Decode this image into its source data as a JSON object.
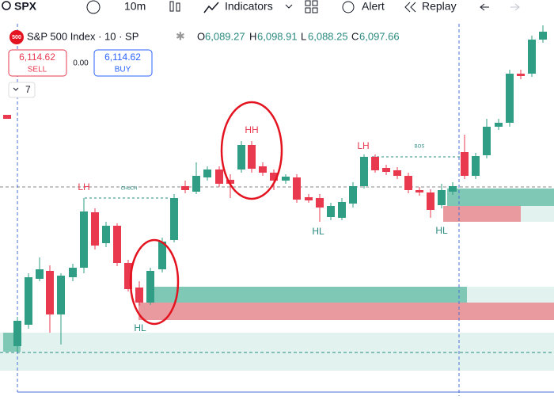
{
  "toolbar": {
    "symbol": "SPX",
    "interval": "10m",
    "indicators": "Indicators",
    "alert": "Alert",
    "replay": "Replay"
  },
  "legend": {
    "badge": "500",
    "title": "S&P 500 Index · 10 · SP",
    "o_label": "O",
    "open": "6,089.27",
    "h_label": "H",
    "high": "6,098.91",
    "l_label": "L",
    "low": "6,088.25",
    "c_label": "C",
    "close": "6,097.66"
  },
  "trade": {
    "sell_price": "6,114.62",
    "sell_label": "SELL",
    "spread": "0.00",
    "buy_price": "6,114.62",
    "buy_label": "BUY"
  },
  "indicator_count": "7",
  "annotations": [
    {
      "text": "LH",
      "kind": "high"
    },
    {
      "text": "CHoCH",
      "kind": "line"
    },
    {
      "text": "HH",
      "kind": "high"
    },
    {
      "text": "LH",
      "kind": "high"
    },
    {
      "text": "BOS",
      "kind": "line"
    },
    {
      "text": "HL",
      "kind": "low"
    },
    {
      "text": "HL",
      "kind": "low"
    },
    {
      "text": "HL",
      "kind": "low"
    }
  ]
}
